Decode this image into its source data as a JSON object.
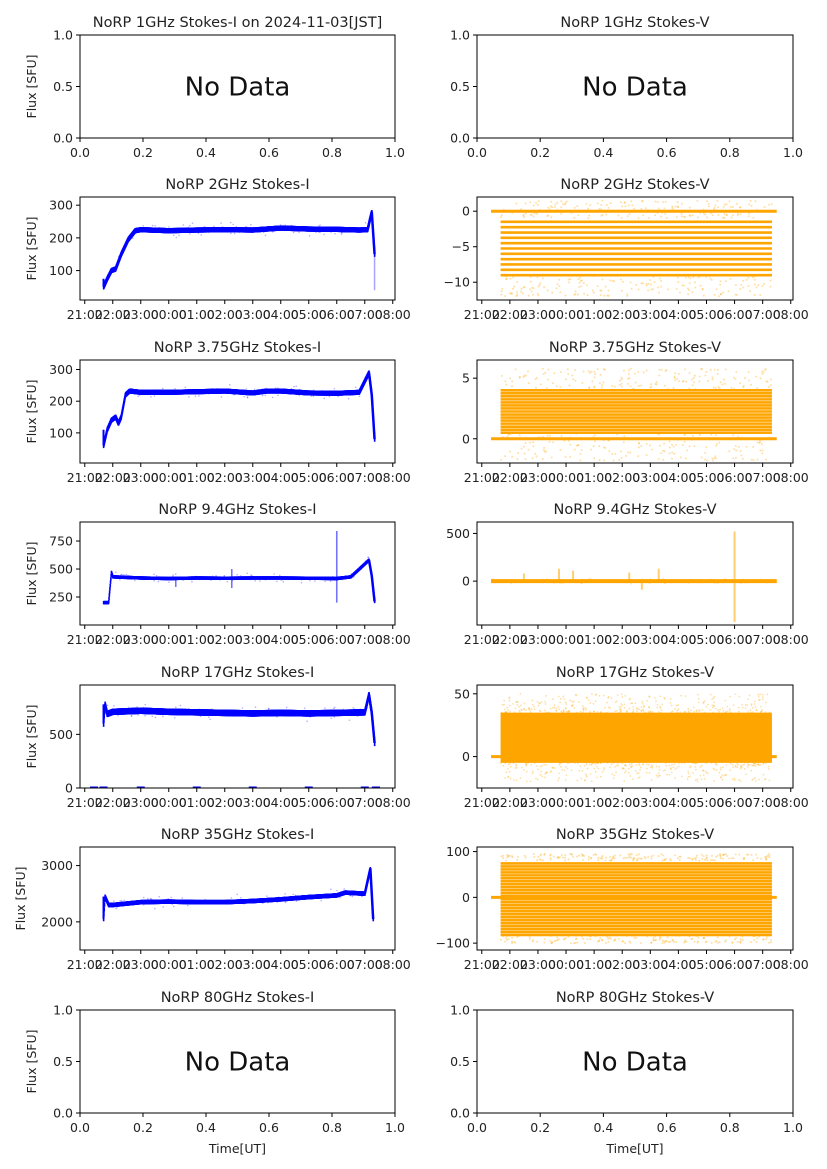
{
  "figure": {
    "date_label": "2024-11-03[JST]",
    "xlabel": "Time[UT]",
    "ylabel": "Flux [SFU]",
    "no_data_text": "No Data",
    "colors": {
      "stokes_i": "#0000ff",
      "stokes_v": "#ffa500"
    }
  },
  "chart_data": [
    {
      "type": "scatter",
      "title": "NoRP 1GHz Stokes-I on 2024-11-03[JST]",
      "ylabel": "Flux [SFU]",
      "xlabel": "",
      "has_data": false,
      "xlim": [
        0,
        1
      ],
      "ylim": [
        0,
        1
      ],
      "xticks": [
        "0.0",
        "0.2",
        "0.4",
        "0.6",
        "0.8",
        "1.0"
      ],
      "yticks": [
        0,
        0.5,
        1.0
      ],
      "ytick_labels": [
        "0.0",
        "0.5",
        "1.0"
      ],
      "annotation": "No Data"
    },
    {
      "type": "scatter",
      "title": "NoRP 1GHz Stokes-V",
      "ylabel": "",
      "xlabel": "",
      "has_data": false,
      "xlim": [
        0,
        1
      ],
      "ylim": [
        0,
        1
      ],
      "xticks": [
        "0.0",
        "0.2",
        "0.4",
        "0.6",
        "0.8",
        "1.0"
      ],
      "yticks": [
        0,
        0.5,
        1.0
      ],
      "ytick_labels": [
        "0.0",
        "0.5",
        "1.0"
      ],
      "annotation": "No Data"
    },
    {
      "type": "scatter",
      "title": "NoRP 2GHz Stokes-I",
      "ylabel": "Flux [SFU]",
      "has_data": true,
      "series_color": "#0000ff",
      "stokes": "I",
      "ylim": [
        10,
        325
      ],
      "yticks": [
        100,
        200,
        300
      ],
      "ytick_labels": [
        "100",
        "200",
        "300"
      ],
      "x_hours": [
        21.67,
        21.8,
        21.95,
        22.1,
        22.3,
        22.55,
        22.8,
        23.0,
        24.0,
        25.0,
        26.0,
        27.0,
        27.5,
        28.0,
        29.0,
        30.0,
        30.8,
        31.1,
        31.25,
        31.35
      ],
      "values": [
        50,
        75,
        100,
        105,
        150,
        195,
        222,
        225,
        222,
        224,
        225,
        224,
        227,
        230,
        227,
        226,
        224,
        225,
        280,
        150
      ],
      "spread": 8,
      "tail_drop_to": 40
    },
    {
      "type": "scatter",
      "title": "NoRP 2GHz Stokes-V",
      "ylabel": "",
      "has_data": true,
      "series_color": "#ffa500",
      "stokes": "V",
      "kind": "quantized",
      "ylim": [
        -12.5,
        2
      ],
      "yticks": [
        -10,
        -5,
        0
      ],
      "ytick_labels": [
        "−10",
        "−5",
        "0"
      ],
      "x_start": 21.67,
      "x_end": 31.33,
      "band_min": -9,
      "band_max": -1,
      "levels_step": 0.75,
      "sparse_min": -12,
      "sparse_max": 1.5,
      "zero_pad": [
        21.33,
        31.5
      ]
    },
    {
      "type": "scatter",
      "title": "NoRP 3.75GHz Stokes-I",
      "ylabel": "Flux [SFU]",
      "has_data": true,
      "series_color": "#0000ff",
      "stokes": "I",
      "ylim": [
        5,
        330
      ],
      "yticks": [
        100,
        200,
        300
      ],
      "ytick_labels": [
        "100",
        "200",
        "300"
      ],
      "x_hours": [
        21.67,
        21.8,
        21.95,
        22.1,
        22.2,
        22.3,
        22.45,
        22.6,
        23.0,
        24.0,
        25.0,
        26.0,
        27.0,
        27.5,
        28.0,
        29.0,
        30.0,
        30.8,
        31.15,
        31.25,
        31.35
      ],
      "values": [
        60,
        110,
        140,
        150,
        130,
        150,
        220,
        232,
        228,
        228,
        230,
        232,
        226,
        232,
        232,
        226,
        225,
        228,
        290,
        220,
        80
      ],
      "spread": 8
    },
    {
      "type": "scatter",
      "title": "NoRP 3.75GHz Stokes-V",
      "ylabel": "",
      "has_data": true,
      "series_color": "#ffa500",
      "stokes": "V",
      "kind": "quantized",
      "ylim": [
        -2,
        6.5
      ],
      "yticks": [
        0,
        5
      ],
      "ytick_labels": [
        "0",
        "5"
      ],
      "x_start": 21.67,
      "x_end": 31.33,
      "band_min": 0.5,
      "band_max": 4,
      "levels_step": 0.25,
      "sparse_min": -1.8,
      "sparse_max": 5.8,
      "zero_pad": [
        21.33,
        31.5
      ]
    },
    {
      "type": "scatter",
      "title": "NoRP 9.4GHz Stokes-I",
      "ylabel": "Flux [SFU]",
      "has_data": true,
      "series_color": "#0000ff",
      "stokes": "I",
      "ylim": [
        0,
        920
      ],
      "yticks": [
        250,
        500,
        750
      ],
      "ytick_labels": [
        "250",
        "500",
        "750"
      ],
      "x_hours": [
        21.67,
        21.85,
        21.95,
        22.0,
        23.0,
        24.0,
        25.0,
        26.0,
        27.0,
        28.0,
        29.0,
        30.0,
        30.5,
        31.15,
        31.25,
        31.35
      ],
      "values": [
        200,
        200,
        470,
        430,
        420,
        415,
        420,
        418,
        420,
        420,
        418,
        415,
        430,
        580,
        440,
        210
      ],
      "spread": 15,
      "spikes": [
        [
          24.25,
          340
        ],
        [
          26.25,
          500
        ],
        [
          26.25,
          330
        ],
        [
          30.0,
          840
        ],
        [
          30.0,
          200
        ]
      ]
    },
    {
      "type": "scatter",
      "title": "NoRP 9.4GHz Stokes-V",
      "ylabel": "",
      "has_data": true,
      "series_color": "#ffa500",
      "stokes": "V",
      "kind": "spiky",
      "ylim": [
        -460,
        620
      ],
      "yticks": [
        0,
        500
      ],
      "ytick_labels": [
        "0",
        "500"
      ],
      "x_start": 21.33,
      "x_end": 31.5,
      "spikes": [
        [
          22.5,
          80
        ],
        [
          23.75,
          130
        ],
        [
          24.25,
          110
        ],
        [
          26.25,
          90
        ],
        [
          26.7,
          -90
        ],
        [
          27.3,
          130
        ],
        [
          30.0,
          520
        ],
        [
          30.0,
          -430
        ]
      ]
    },
    {
      "type": "scatter",
      "title": "NoRP 17GHz Stokes-I",
      "ylabel": "Flux [SFU]",
      "has_data": true,
      "series_color": "#0000ff",
      "stokes": "I",
      "ylim": [
        0,
        960
      ],
      "yticks": [
        0,
        500
      ],
      "ytick_labels": [
        "0",
        "500"
      ],
      "x_hours": [
        21.67,
        21.72,
        21.8,
        22.0,
        23.0,
        24.0,
        25.0,
        26.0,
        27.0,
        28.0,
        29.0,
        30.0,
        31.0,
        31.15,
        31.25,
        31.35
      ],
      "values": [
        600,
        780,
        690,
        710,
        720,
        710,
        705,
        700,
        695,
        700,
        695,
        700,
        705,
        870,
        700,
        420
      ],
      "spread": 30,
      "zero_marks": [
        21.33,
        21.67,
        23.0,
        25.0,
        27.0,
        29.0,
        31.0,
        31.4
      ]
    },
    {
      "type": "scatter",
      "title": "NoRP 17GHz Stokes-V",
      "ylabel": "",
      "has_data": true,
      "series_color": "#ffa500",
      "stokes": "V",
      "kind": "noise",
      "ylim": [
        -25,
        57
      ],
      "yticks": [
        0,
        50
      ],
      "ytick_labels": [
        "0",
        "50"
      ],
      "x_start": 21.67,
      "x_end": 31.33,
      "band_min": -5,
      "band_max": 35,
      "sparse_min": -20,
      "sparse_max": 50,
      "zero_pad": [
        21.33,
        31.5
      ]
    },
    {
      "type": "scatter",
      "title": "NoRP 35GHz Stokes-I",
      "ylabel": "Flux [SFU]",
      "has_data": true,
      "series_color": "#0000ff",
      "stokes": "I",
      "ylim": [
        1500,
        3330
      ],
      "yticks": [
        2000,
        3000
      ],
      "ytick_labels": [
        "2000",
        "3000"
      ],
      "x_hours": [
        21.67,
        21.72,
        21.85,
        22.0,
        23.0,
        24.0,
        25.0,
        26.0,
        27.0,
        28.0,
        29.0,
        30.0,
        30.3,
        31.0,
        31.2,
        31.3
      ],
      "values": [
        2050,
        2450,
        2300,
        2300,
        2350,
        2360,
        2350,
        2350,
        2370,
        2400,
        2440,
        2470,
        2520,
        2500,
        2950,
        2050
      ],
      "spread": 40
    },
    {
      "type": "scatter",
      "title": "NoRP 35GHz Stokes-V",
      "ylabel": "",
      "has_data": true,
      "series_color": "#ffa500",
      "stokes": "V",
      "kind": "quantized",
      "ylim": [
        -115,
        110
      ],
      "yticks": [
        -100,
        0,
        100
      ],
      "ytick_labels": [
        "−100",
        "0",
        "100"
      ],
      "x_start": 21.67,
      "x_end": 31.33,
      "band_min": -82,
      "band_max": 80,
      "levels_step": 6.5,
      "sparse_min": -100,
      "sparse_max": 95,
      "zero_pad": [
        21.33,
        31.5
      ]
    },
    {
      "type": "scatter",
      "title": "NoRP 80GHz Stokes-I",
      "ylabel": "Flux [SFU]",
      "xlabel": "Time[UT]",
      "has_data": false,
      "xlim": [
        0,
        1
      ],
      "ylim": [
        0,
        1
      ],
      "xticks": [
        "0.0",
        "0.2",
        "0.4",
        "0.6",
        "0.8",
        "1.0"
      ],
      "yticks": [
        0,
        0.5,
        1.0
      ],
      "ytick_labels": [
        "0.0",
        "0.5",
        "1.0"
      ],
      "annotation": "No Data"
    },
    {
      "type": "scatter",
      "title": "NoRP 80GHz Stokes-V",
      "ylabel": "",
      "xlabel": "Time[UT]",
      "has_data": false,
      "xlim": [
        0,
        1
      ],
      "ylim": [
        0,
        1
      ],
      "xticks": [
        "0.0",
        "0.2",
        "0.4",
        "0.6",
        "0.8",
        "1.0"
      ],
      "yticks": [
        0,
        0.5,
        1.0
      ],
      "ytick_labels": [
        "0.0",
        "0.5",
        "1.0"
      ],
      "annotation": "No Data"
    }
  ],
  "time_axis": {
    "xlim_hours": [
      20.83,
      32.08
    ],
    "tick_hours": [
      21,
      22,
      23,
      24,
      25,
      26,
      27,
      28,
      29,
      30,
      31,
      32
    ],
    "tick_labels": [
      "21:00",
      "22:00",
      "23:00",
      "00:00",
      "01:00",
      "02:00",
      "03:00",
      "04:00",
      "05:00",
      "06:00",
      "07:00",
      "08:00"
    ]
  }
}
